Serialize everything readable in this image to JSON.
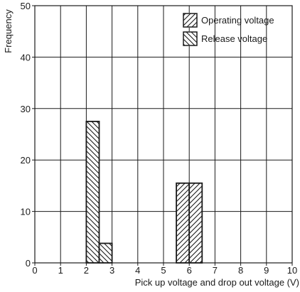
{
  "chart_data": {
    "type": "bar",
    "xlabel": "Pick up voltage and drop out voltage (V)",
    "ylabel": "Frequency",
    "xlim": [
      0,
      10
    ],
    "ylim": [
      0,
      50
    ],
    "xticks": [
      0,
      1,
      2,
      3,
      4,
      5,
      6,
      7,
      8,
      9,
      10
    ],
    "yticks": [
      0,
      10,
      20,
      30,
      40,
      50
    ],
    "grid": true,
    "legend_position": "top-right",
    "bin_width": 0.5,
    "series": [
      {
        "name": "Operating voltage",
        "hatch": "forward-diagonal",
        "bins": [
          {
            "x_start": 5.5,
            "x_end": 6.0,
            "value": 15.5
          },
          {
            "x_start": 6.0,
            "x_end": 6.5,
            "value": 15.5
          }
        ]
      },
      {
        "name": "Release voltage",
        "hatch": "backward-diagonal",
        "bins": [
          {
            "x_start": 2.0,
            "x_end": 2.5,
            "value": 27.5
          },
          {
            "x_start": 2.5,
            "x_end": 3.0,
            "value": 3.8
          }
        ]
      }
    ]
  }
}
